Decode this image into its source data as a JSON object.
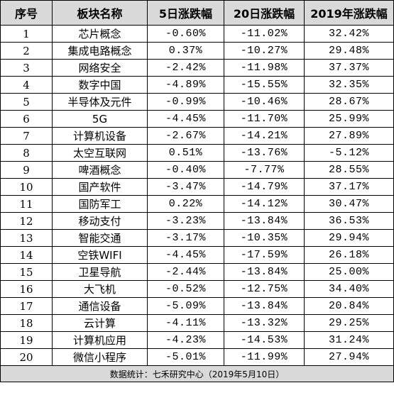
{
  "table": {
    "headers": [
      "序号",
      "板块名称",
      "5日涨跌幅",
      "20日涨跌幅",
      "2019年涨跌幅"
    ],
    "rows": [
      [
        "1",
        "芯片概念",
        "-0.60%",
        "-11.02%",
        "32.42%"
      ],
      [
        "2",
        "集成电路概念",
        "0.37%",
        "-10.27%",
        "29.48%"
      ],
      [
        "3",
        "网络安全",
        "-2.42%",
        "-11.98%",
        "37.37%"
      ],
      [
        "4",
        "数字中国",
        "-4.89%",
        "-15.55%",
        "32.35%"
      ],
      [
        "5",
        "半导体及元件",
        "-0.99%",
        "-10.46%",
        "28.67%"
      ],
      [
        "6",
        "5G",
        "-4.45%",
        "-11.70%",
        "25.99%"
      ],
      [
        "7",
        "计算机设备",
        "-2.67%",
        "-14.21%",
        "27.89%"
      ],
      [
        "8",
        "太空互联网",
        "0.51%",
        "-13.76%",
        "-5.12%"
      ],
      [
        "9",
        "啤酒概念",
        "-0.40%",
        "-7.77%",
        "28.55%"
      ],
      [
        "10",
        "国产软件",
        "-3.47%",
        "-14.79%",
        "37.17%"
      ],
      [
        "11",
        "国防军工",
        "0.22%",
        "-14.12%",
        "30.47%"
      ],
      [
        "12",
        "移动支付",
        "-3.23%",
        "-13.84%",
        "36.53%"
      ],
      [
        "13",
        "智能交通",
        "-3.17%",
        "-10.35%",
        "29.94%"
      ],
      [
        "14",
        "空铁WIFI",
        "-4.45%",
        "-17.59%",
        "26.18%"
      ],
      [
        "15",
        "卫星导航",
        "-2.44%",
        "-13.84%",
        "25.00%"
      ],
      [
        "16",
        "大飞机",
        "-0.52%",
        "-12.75%",
        "34.40%"
      ],
      [
        "17",
        "通信设备",
        "-5.09%",
        "-13.84%",
        "20.84%"
      ],
      [
        "18",
        "云计算",
        "-4.11%",
        "-13.32%",
        "29.25%"
      ],
      [
        "19",
        "计算机应用",
        "-4.23%",
        "-14.53%",
        "31.24%"
      ],
      [
        "20",
        "微信小程序",
        "-5.01%",
        "-11.99%",
        "27.94%"
      ]
    ],
    "footer": "数据统计：七禾研究中心（2019年5月10日）"
  }
}
